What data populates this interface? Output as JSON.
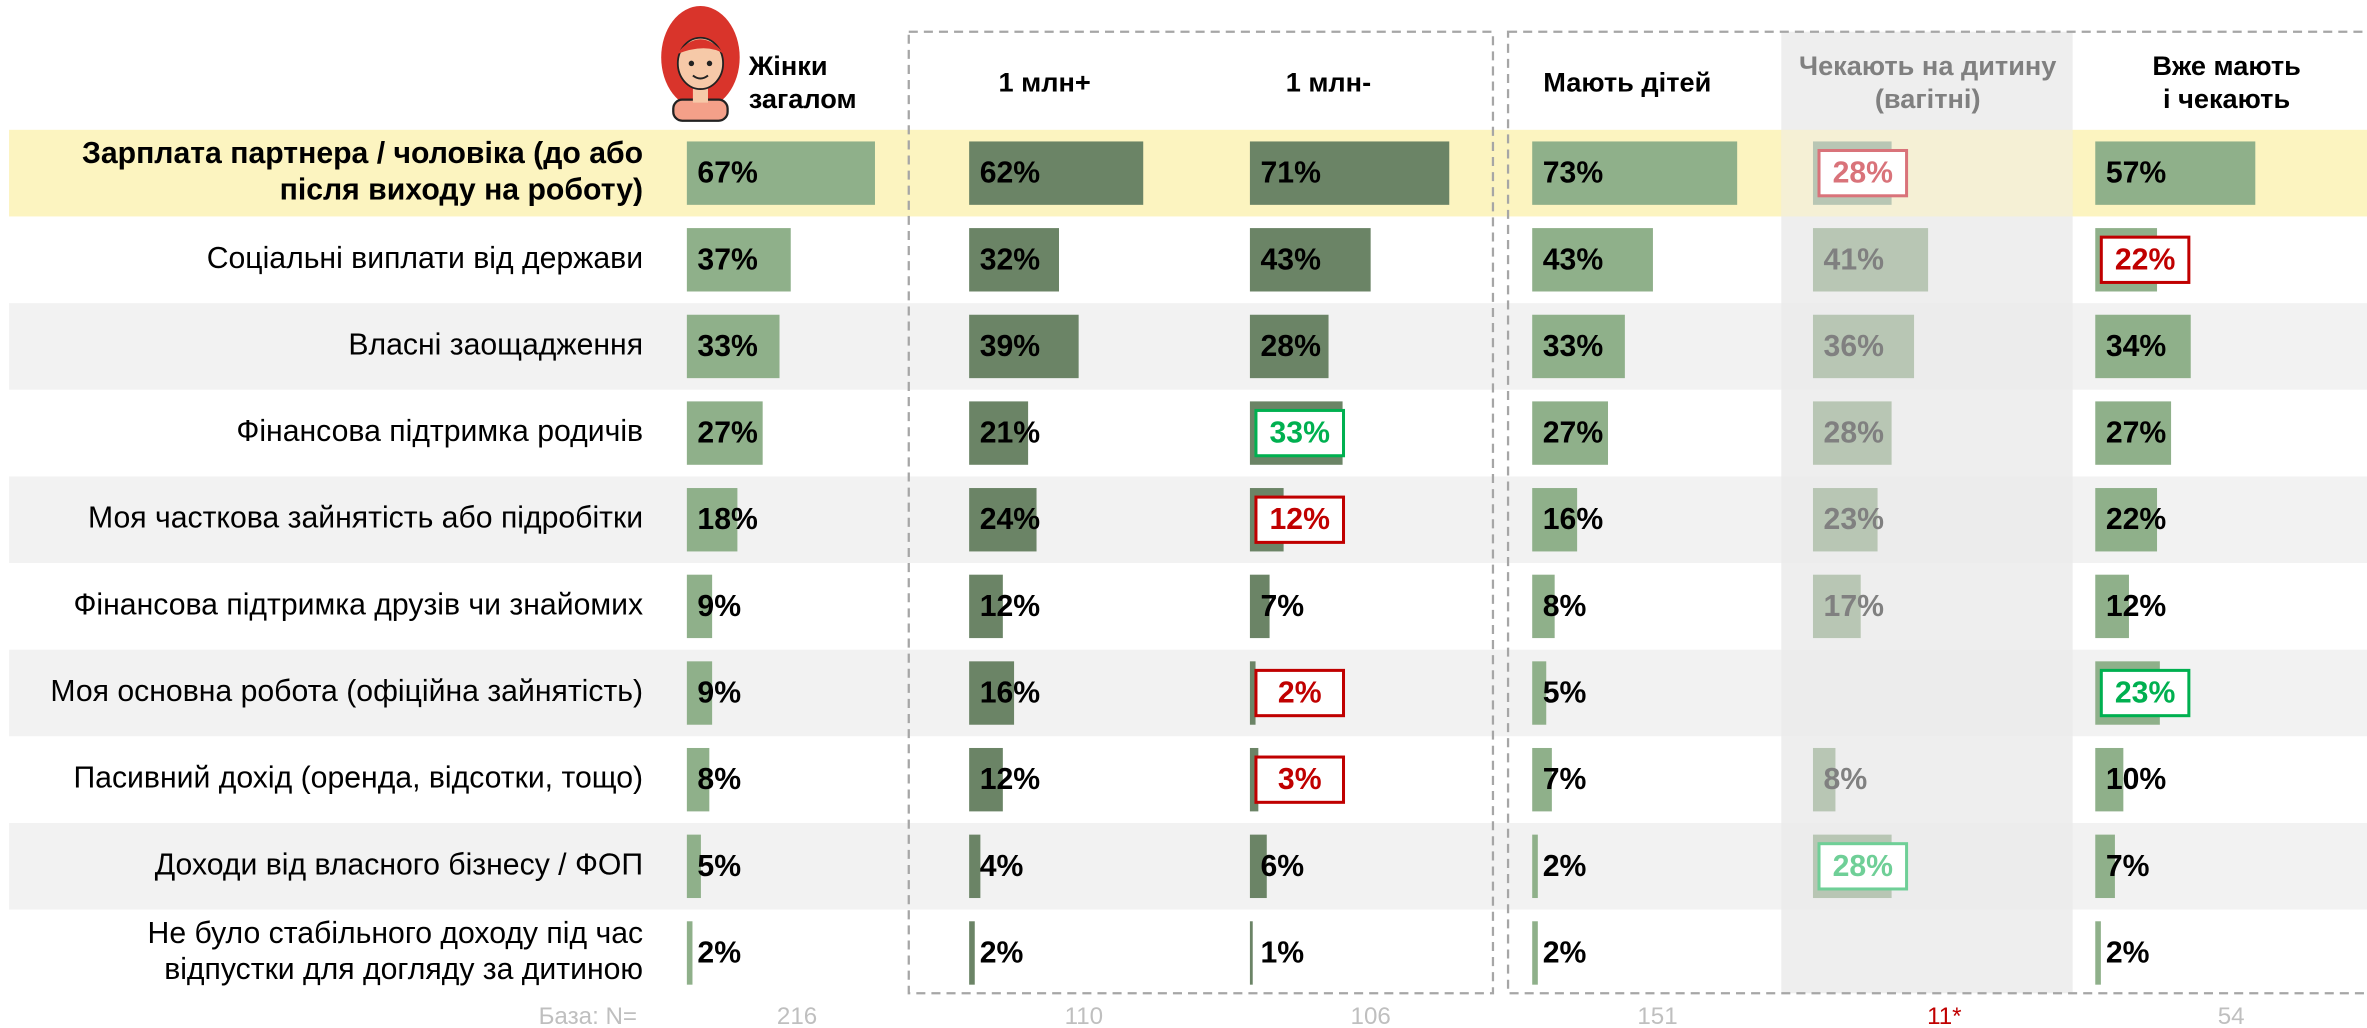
{
  "chart_data": {
    "type": "bar",
    "orientation": "horizontal",
    "categories": [
      "Зарплата партнера / чоловіка (до або\nпісля виходу на роботу)",
      "Соціальні виплати від держави",
      "Власні заощадження",
      "Фінансова підтримка родичів",
      "Моя часткова зайнятість або підробітки",
      "Фінансова підтримка друзів чи знайомих",
      "Моя основна робота (офіційна зайнятість)",
      "Пасивний дохід (оренда, відсотки, тощо)",
      "Доходи від власного бізнесу / ФОП",
      "Не було стабільного доходу під час\nвідпустки для догляду за дитиною"
    ],
    "highlight_category": 0,
    "highlight_color": "#fcf4c0",
    "xlim": [
      0,
      100
    ],
    "base_label": "База: N=",
    "series": [
      {
        "name": "Жінки\nзагалом",
        "color": "#8fb08a",
        "text_color": "#000000",
        "values": [
          67,
          37,
          33,
          27,
          18,
          9,
          9,
          8,
          5,
          2
        ],
        "value_labels": [
          "67%",
          "37%",
          "33%",
          "27%",
          "18%",
          "9%",
          "9%",
          "8%",
          "5%",
          "2%"
        ],
        "label_box_colors": [
          null,
          null,
          null,
          null,
          null,
          null,
          null,
          null,
          null,
          null
        ],
        "base": 216,
        "base_color": "#bfbfbf"
      },
      {
        "name": "1 млн+",
        "color": "#6b8466",
        "text_color": "#000000",
        "values": [
          62,
          32,
          39,
          21,
          24,
          12,
          16,
          12,
          4,
          2
        ],
        "value_labels": [
          "62%",
          "32%",
          "39%",
          "21%",
          "24%",
          "12%",
          "16%",
          "12%",
          "4%",
          "2%"
        ],
        "label_box_colors": [
          null,
          null,
          null,
          null,
          null,
          null,
          null,
          null,
          null,
          null
        ],
        "base": 110,
        "base_color": "#bfbfbf"
      },
      {
        "name": "1 млн-",
        "color": "#6b8466",
        "text_color": "#000000",
        "values": [
          71,
          43,
          28,
          33,
          12,
          7,
          2,
          3,
          6,
          1
        ],
        "value_labels": [
          "71%",
          "43%",
          "28%",
          "33%",
          "12%",
          "7%",
          "2%",
          "3%",
          "6%",
          "1%"
        ],
        "label_box_colors": [
          null,
          null,
          null,
          "#00b050",
          "#c00000",
          null,
          "#c00000",
          "#c00000",
          null,
          null
        ],
        "base": 106,
        "base_color": "#bfbfbf"
      },
      {
        "name": "Мають дітей",
        "color": "#8fb08a",
        "text_color": "#000000",
        "values": [
          73,
          43,
          33,
          27,
          16,
          8,
          5,
          7,
          2,
          2
        ],
        "value_labels": [
          "73%",
          "43%",
          "33%",
          "27%",
          "16%",
          "8%",
          "5%",
          "7%",
          "2%",
          "2%"
        ],
        "label_box_colors": [
          null,
          null,
          null,
          null,
          null,
          null,
          null,
          null,
          null,
          null
        ],
        "base": 151,
        "base_color": "#bfbfbf"
      },
      {
        "name": "Чекають на дитину\n(вагітні)",
        "color": "#b8c6b4",
        "text_color": "#808080",
        "background": "#ebebeb",
        "values": [
          28,
          41,
          36,
          28,
          23,
          17,
          null,
          8,
          28,
          null
        ],
        "value_labels": [
          "28%",
          "41%",
          "36%",
          "28%",
          "23%",
          "17%",
          null,
          "8%",
          "28%",
          null
        ],
        "label_box_colors": [
          "#d9737a",
          null,
          null,
          null,
          null,
          null,
          null,
          null,
          "#6fcf97",
          null
        ],
        "base": "11*",
        "base_color": "#c00000"
      },
      {
        "name": "Вже мають\nі чекають",
        "color": "#8fb08a",
        "text_color": "#000000",
        "values": [
          57,
          22,
          34,
          27,
          22,
          12,
          23,
          10,
          7,
          2
        ],
        "value_labels": [
          "57%",
          "22%",
          "34%",
          "27%",
          "22%",
          "12%",
          "23%",
          "10%",
          "7%",
          "2%"
        ],
        "label_box_colors": [
          null,
          "#c00000",
          null,
          null,
          null,
          null,
          "#00b050",
          null,
          null,
          null
        ],
        "base": 54,
        "base_color": "#bfbfbf"
      }
    ]
  }
}
